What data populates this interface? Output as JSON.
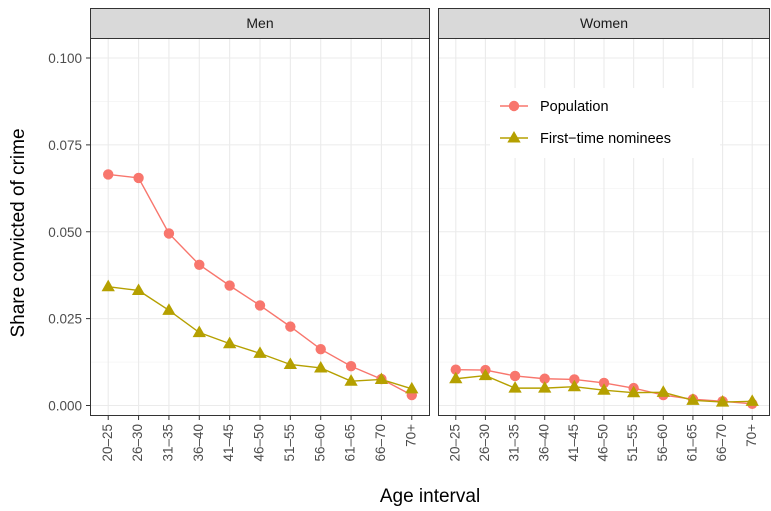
{
  "chart_data": {
    "type": "line",
    "ylabel": "Share convicted of crime",
    "xlabel": "Age interval",
    "ylim": [
      0,
      0.1
    ],
    "yticks": [
      "0.000",
      "0.025",
      "0.050",
      "0.075",
      "0.100"
    ],
    "categories": [
      "20–25",
      "26–30",
      "31–35",
      "36–40",
      "41–45",
      "46–50",
      "51–55",
      "56–60",
      "61–65",
      "66–70",
      "70+"
    ],
    "grid": true,
    "legend_position": "inside-right-panel-top",
    "panels": [
      {
        "title": "Men",
        "series": [
          {
            "name": "Population",
            "color": "#F8766D",
            "marker": "circle",
            "values": [
              0.0665,
              0.0655,
              0.0495,
              0.0405,
              0.0345,
              0.0288,
              0.0227,
              0.0162,
              0.0113,
              0.0076,
              0.003
            ]
          },
          {
            "name": "First−time nominees",
            "color": "#B5A000",
            "marker": "triangle",
            "values": [
              0.0342,
              0.0331,
              0.0274,
              0.021,
              0.0178,
              0.015,
              0.0118,
              0.0108,
              0.007,
              0.0075,
              0.0048
            ]
          }
        ]
      },
      {
        "title": "Women",
        "series": [
          {
            "name": "Population",
            "color": "#F8766D",
            "marker": "circle",
            "values": [
              0.0103,
              0.0102,
              0.0085,
              0.0077,
              0.0075,
              0.0065,
              0.005,
              0.003,
              0.0018,
              0.0012,
              0.0005
            ]
          },
          {
            "name": "First−time nominees",
            "color": "#B5A000",
            "marker": "triangle",
            "values": [
              0.0077,
              0.0086,
              0.005,
              0.005,
              0.0054,
              0.0044,
              0.0037,
              0.0038,
              0.0015,
              0.001,
              0.0012
            ]
          }
        ]
      }
    ],
    "legend": [
      {
        "label": "Population",
        "color": "#F8766D",
        "marker": "circle"
      },
      {
        "label": "First−time nominees",
        "color": "#B5A000",
        "marker": "triangle"
      }
    ]
  }
}
